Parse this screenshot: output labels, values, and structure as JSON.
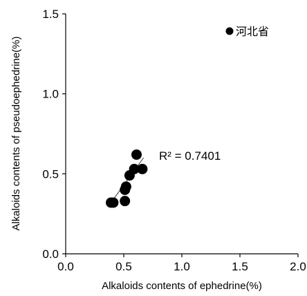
{
  "chart_data": {
    "type": "scatter",
    "title": "",
    "xlabel": "Alkaloids contents of ephedrine(%)",
    "ylabel": "Alkaloids contents of pseudoephedrine(%)",
    "xlim": [
      0.0,
      2.0
    ],
    "ylim": [
      0.0,
      1.5
    ],
    "x_ticks": [
      "0.0",
      "0.5",
      "1.0",
      "1.5",
      "2.0"
    ],
    "y_ticks": [
      "0.0",
      "0.5",
      "1.0",
      "1.5"
    ],
    "grid": false,
    "legend_position": "top-right",
    "series": [
      {
        "name": "河北省",
        "color": "#000000",
        "points": [
          {
            "x": 0.39,
            "y": 0.32
          },
          {
            "x": 0.41,
            "y": 0.32
          },
          {
            "x": 0.51,
            "y": 0.33
          },
          {
            "x": 0.51,
            "y": 0.4
          },
          {
            "x": 0.52,
            "y": 0.42
          },
          {
            "x": 0.55,
            "y": 0.49
          },
          {
            "x": 0.59,
            "y": 0.53
          },
          {
            "x": 0.61,
            "y": 0.62
          },
          {
            "x": 0.66,
            "y": 0.53
          }
        ]
      }
    ],
    "trendline": {
      "type": "linear",
      "x_range": [
        0.38,
        0.67
      ],
      "y_range": [
        0.31,
        0.6
      ]
    },
    "annotation": "R² = 0.7401"
  }
}
